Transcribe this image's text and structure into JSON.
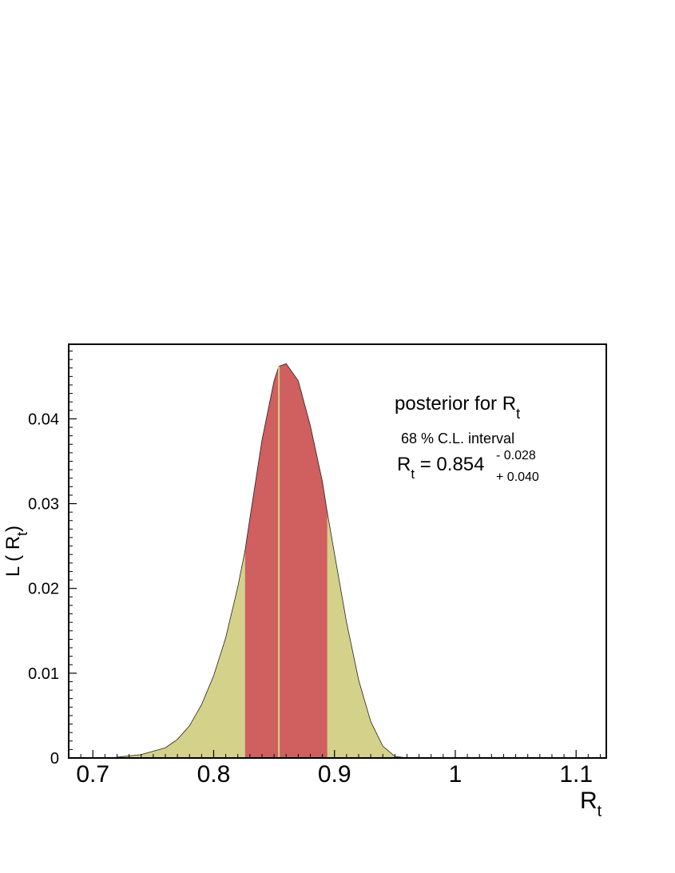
{
  "chart_data": {
    "type": "area",
    "title": "",
    "xlabel": "R",
    "xlabel_sub": "t",
    "ylabel": "L ( R",
    "ylabel_sub": "t",
    "ylabel_close": ")",
    "xlim": [
      0.68,
      1.125
    ],
    "ylim": [
      0,
      0.0488
    ],
    "x_ticks": [
      0.7,
      0.8,
      0.9,
      1,
      1.1
    ],
    "x_tick_labels": [
      "0.7",
      "0.8",
      "0.9",
      "1",
      "1.1"
    ],
    "y_ticks": [
      0,
      0.01,
      0.02,
      0.03,
      0.04
    ],
    "y_tick_labels": [
      "0",
      "0.01",
      "0.02",
      "0.03",
      "0.04"
    ],
    "grid": false,
    "series": [
      {
        "x": [
          0.72,
          0.74,
          0.76,
          0.77,
          0.78,
          0.79,
          0.8,
          0.81,
          0.82,
          0.826,
          0.83,
          0.84,
          0.85,
          0.854,
          0.86,
          0.87,
          0.88,
          0.89,
          0.894,
          0.9,
          0.91,
          0.92,
          0.93,
          0.94,
          0.95,
          0.96,
          1.0,
          1.12
        ],
        "y": [
          0.0001,
          0.0004,
          0.0012,
          0.0022,
          0.0038,
          0.0063,
          0.0097,
          0.0142,
          0.0202,
          0.0245,
          0.0283,
          0.0375,
          0.0445,
          0.0462,
          0.0465,
          0.0445,
          0.0392,
          0.0326,
          0.029,
          0.0241,
          0.016,
          0.0092,
          0.0043,
          0.0014,
          0.0002,
          0.0,
          0.0,
          0.0
        ]
      }
    ],
    "interval": {
      "low": 0.826,
      "high": 0.894,
      "mode": 0.854
    },
    "colors": {
      "posterior_fill": "#d4d18b",
      "interval_fill": "#d05f60",
      "mode_line": "#d4d18b"
    },
    "annotation": {
      "title": "posterior for  R",
      "title_sub": "t",
      "subtitle": "68 % C.L. interval",
      "result_prefix": "R",
      "result_sub": "t",
      "result_main": " = 0.854",
      "result_upper": "- 0.028",
      "result_lower": "+ 0.040"
    }
  }
}
